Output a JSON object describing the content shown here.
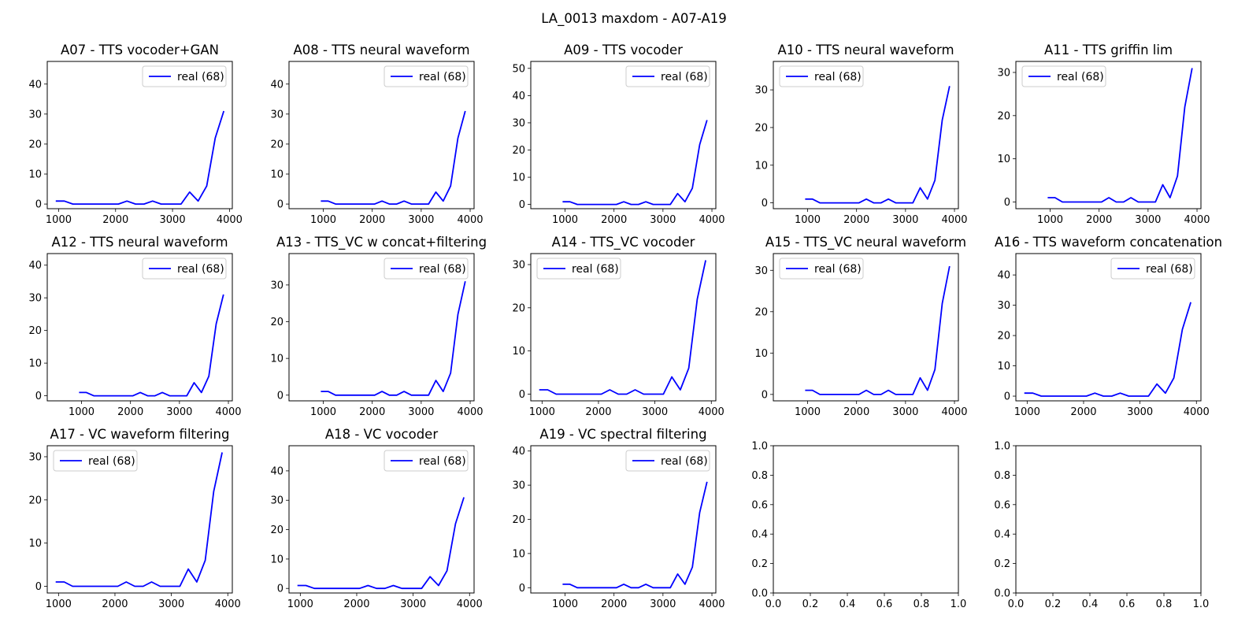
{
  "figure_title": "LA_0013 maxdom - A07-A19",
  "colors": {
    "line": "#0000ff",
    "axes": "#000000",
    "legend_border": "#cccccc"
  },
  "chart_data": [
    {
      "type": "line",
      "title": "A07 - TTS vocoder+GAN",
      "legend_loc": "upper right",
      "series": [
        {
          "name": "real (68)",
          "x": [
            950,
            1100,
            1250,
            1400,
            1550,
            1700,
            1850,
            2050,
            2200,
            2350,
            2500,
            2650,
            2800,
            2950,
            3150,
            3300,
            3450,
            3600,
            3750,
            3900
          ],
          "y": [
            1,
            1,
            0,
            0,
            0,
            0,
            0,
            0,
            1,
            0,
            0,
            1,
            0,
            0,
            0,
            4,
            1,
            6,
            22,
            31
          ]
        }
      ],
      "xlim": [
        800,
        4050
      ],
      "ylim": [
        -1.55,
        47.55
      ],
      "xticks": [
        "1000",
        "2000",
        "3000",
        "4000"
      ],
      "yticks": [
        "0",
        "10",
        "20",
        "30",
        "40"
      ]
    },
    {
      "type": "line",
      "title": "A08 - TTS neural waveform",
      "legend_loc": "upper right",
      "series": [
        {
          "name": "real (68)",
          "x": [
            950,
            1100,
            1250,
            1400,
            1550,
            1700,
            1850,
            2050,
            2200,
            2350,
            2500,
            2650,
            2800,
            2950,
            3150,
            3300,
            3450,
            3600,
            3750,
            3900
          ],
          "y": [
            1,
            1,
            0,
            0,
            0,
            0,
            0,
            0,
            1,
            0,
            0,
            1,
            0,
            0,
            0,
            4,
            1,
            6,
            22,
            31
          ]
        }
      ],
      "xlim": [
        300,
        4080
      ],
      "ylim": [
        -1.55,
        47.55
      ],
      "xticks": [
        "1000",
        "2000",
        "3000",
        "4000"
      ],
      "yticks": [
        "0",
        "10",
        "20",
        "30",
        "40"
      ]
    },
    {
      "type": "line",
      "title": "A09 - TTS vocoder",
      "legend_loc": "upper right",
      "series": [
        {
          "name": "real (68)",
          "x": [
            950,
            1100,
            1250,
            1400,
            1550,
            1700,
            1850,
            2050,
            2200,
            2350,
            2500,
            2650,
            2800,
            2950,
            3150,
            3300,
            3450,
            3600,
            3750,
            3900
          ],
          "y": [
            1,
            1,
            0,
            0,
            0,
            0,
            0,
            0,
            1,
            0,
            0,
            1,
            0,
            0,
            0,
            4,
            1,
            6,
            22,
            31
          ]
        }
      ],
      "xlim": [
        300,
        4080
      ],
      "ylim": [
        -1.55,
        52.55
      ],
      "xticks": [
        "1000",
        "2000",
        "3000",
        "4000"
      ],
      "yticks": [
        "0",
        "10",
        "20",
        "30",
        "40",
        "50"
      ]
    },
    {
      "type": "line",
      "title": "A10 - TTS neural waveform",
      "legend_loc": "upper left",
      "series": [
        {
          "name": "real (68)",
          "x": [
            950,
            1100,
            1250,
            1400,
            1550,
            1700,
            1850,
            2050,
            2200,
            2350,
            2500,
            2650,
            2800,
            2950,
            3150,
            3300,
            3450,
            3600,
            3750,
            3900
          ],
          "y": [
            1,
            1,
            0,
            0,
            0,
            0,
            0,
            0,
            1,
            0,
            0,
            1,
            0,
            0,
            0,
            4,
            1,
            6,
            22,
            31
          ]
        }
      ],
      "xlim": [
        300,
        4080
      ],
      "ylim": [
        -1.55,
        37.55
      ],
      "xticks": [
        "1000",
        "2000",
        "3000",
        "4000"
      ],
      "yticks": [
        "0",
        "10",
        "20",
        "30"
      ]
    },
    {
      "type": "line",
      "title": "A11 - TTS griffin lim",
      "legend_loc": "upper left",
      "series": [
        {
          "name": "real (68)",
          "x": [
            950,
            1100,
            1250,
            1400,
            1550,
            1700,
            1850,
            2050,
            2200,
            2350,
            2500,
            2650,
            2800,
            2950,
            3150,
            3300,
            3450,
            3600,
            3750,
            3900
          ],
          "y": [
            1,
            1,
            0,
            0,
            0,
            0,
            0,
            0,
            1,
            0,
            0,
            1,
            0,
            0,
            0,
            4,
            1,
            6,
            22,
            31
          ]
        }
      ],
      "xlim": [
        300,
        4080
      ],
      "ylim": [
        -1.55,
        32.55
      ],
      "xticks": [
        "1000",
        "2000",
        "3000",
        "4000"
      ],
      "yticks": [
        "0",
        "10",
        "20",
        "30"
      ]
    },
    {
      "type": "line",
      "title": "A12 - TTS neural waveform",
      "legend_loc": "upper right",
      "series": [
        {
          "name": "real (68)",
          "x": [
            950,
            1100,
            1250,
            1400,
            1550,
            1700,
            1850,
            2050,
            2200,
            2350,
            2500,
            2650,
            2800,
            2950,
            3150,
            3300,
            3450,
            3600,
            3750,
            3900
          ],
          "y": [
            1,
            1,
            0,
            0,
            0,
            0,
            0,
            0,
            1,
            0,
            0,
            1,
            0,
            0,
            0,
            4,
            1,
            6,
            22,
            31
          ]
        }
      ],
      "xlim": [
        300,
        4080
      ],
      "ylim": [
        -1.55,
        43.55
      ],
      "xticks": [
        "1000",
        "2000",
        "3000",
        "4000"
      ],
      "yticks": [
        "0",
        "10",
        "20",
        "30",
        "40"
      ]
    },
    {
      "type": "line",
      "title": "A13 - TTS_VC w concat+filtering",
      "legend_loc": "upper right",
      "series": [
        {
          "name": "real (68)",
          "x": [
            950,
            1100,
            1250,
            1400,
            1550,
            1700,
            1850,
            2050,
            2200,
            2350,
            2500,
            2650,
            2800,
            2950,
            3150,
            3300,
            3450,
            3600,
            3750,
            3900
          ],
          "y": [
            1,
            1,
            0,
            0,
            0,
            0,
            0,
            0,
            1,
            0,
            0,
            1,
            0,
            0,
            0,
            4,
            1,
            6,
            22,
            31
          ]
        }
      ],
      "xlim": [
        300,
        4080
      ],
      "ylim": [
        -1.55,
        38.55
      ],
      "xticks": [
        "1000",
        "2000",
        "3000",
        "4000"
      ],
      "yticks": [
        "0",
        "10",
        "20",
        "30"
      ]
    },
    {
      "type": "line",
      "title": "A14 - TTS_VC vocoder",
      "legend_loc": "upper left",
      "series": [
        {
          "name": "real (68)",
          "x": [
            950,
            1100,
            1250,
            1400,
            1550,
            1700,
            1850,
            2050,
            2200,
            2350,
            2500,
            2650,
            2800,
            2950,
            3150,
            3300,
            3450,
            3600,
            3750,
            3900
          ],
          "y": [
            1,
            1,
            0,
            0,
            0,
            0,
            0,
            0,
            1,
            0,
            0,
            1,
            0,
            0,
            0,
            4,
            1,
            6,
            22,
            31
          ]
        }
      ],
      "xlim": [
        800,
        4080
      ],
      "ylim": [
        -1.55,
        32.55
      ],
      "xticks": [
        "1000",
        "2000",
        "3000",
        "4000"
      ],
      "yticks": [
        "0",
        "10",
        "20",
        "30"
      ]
    },
    {
      "type": "line",
      "title": "A15 - TTS_VC neural waveform",
      "legend_loc": "upper left",
      "series": [
        {
          "name": "real (68)",
          "x": [
            950,
            1100,
            1250,
            1400,
            1550,
            1700,
            1850,
            2050,
            2200,
            2350,
            2500,
            2650,
            2800,
            2950,
            3150,
            3300,
            3450,
            3600,
            3750,
            3900
          ],
          "y": [
            1,
            1,
            0,
            0,
            0,
            0,
            0,
            0,
            1,
            0,
            0,
            1,
            0,
            0,
            0,
            4,
            1,
            6,
            22,
            31
          ]
        }
      ],
      "xlim": [
        300,
        4080
      ],
      "ylim": [
        -1.55,
        34.05
      ],
      "xticks": [
        "1000",
        "2000",
        "3000",
        "4000"
      ],
      "yticks": [
        "0",
        "10",
        "20",
        "30"
      ]
    },
    {
      "type": "line",
      "title": "A16 - TTS waveform concatenation",
      "legend_loc": "upper right",
      "series": [
        {
          "name": "real (68)",
          "x": [
            950,
            1100,
            1250,
            1400,
            1550,
            1700,
            1850,
            2050,
            2200,
            2350,
            2500,
            2650,
            2800,
            2950,
            3150,
            3300,
            3450,
            3600,
            3750,
            3900
          ],
          "y": [
            1,
            1,
            0,
            0,
            0,
            0,
            0,
            0,
            1,
            0,
            0,
            1,
            0,
            0,
            0,
            4,
            1,
            6,
            22,
            31
          ]
        }
      ],
      "xlim": [
        800,
        4080
      ],
      "ylim": [
        -1.55,
        47.05
      ],
      "xticks": [
        "1000",
        "2000",
        "3000",
        "4000"
      ],
      "yticks": [
        "0",
        "10",
        "20",
        "30",
        "40"
      ]
    },
    {
      "type": "line",
      "title": "A17 - VC waveform filtering",
      "legend_loc": "upper left",
      "series": [
        {
          "name": "real (68)",
          "x": [
            950,
            1100,
            1250,
            1400,
            1550,
            1700,
            1850,
            2050,
            2200,
            2350,
            2500,
            2650,
            2800,
            2950,
            3150,
            3300,
            3450,
            3600,
            3750,
            3900
          ],
          "y": [
            1,
            1,
            0,
            0,
            0,
            0,
            0,
            0,
            1,
            0,
            0,
            1,
            0,
            0,
            0,
            4,
            1,
            6,
            22,
            31
          ]
        }
      ],
      "xlim": [
        800,
        4080
      ],
      "ylim": [
        -1.55,
        32.55
      ],
      "xticks": [
        "1000",
        "2000",
        "3000",
        "4000"
      ],
      "yticks": [
        "0",
        "10",
        "20",
        "30"
      ]
    },
    {
      "type": "line",
      "title": "A18 - VC vocoder",
      "legend_loc": "upper right",
      "series": [
        {
          "name": "real (68)",
          "x": [
            950,
            1100,
            1250,
            1400,
            1550,
            1700,
            1850,
            2050,
            2200,
            2350,
            2500,
            2650,
            2800,
            2950,
            3150,
            3300,
            3450,
            3600,
            3750,
            3900
          ],
          "y": [
            1,
            1,
            0,
            0,
            0,
            0,
            0,
            0,
            1,
            0,
            0,
            1,
            0,
            0,
            0,
            4,
            1,
            6,
            22,
            31
          ]
        }
      ],
      "xlim": [
        800,
        4080
      ],
      "ylim": [
        -1.55,
        48.55
      ],
      "xticks": [
        "1000",
        "2000",
        "3000",
        "4000"
      ],
      "yticks": [
        "0",
        "10",
        "20",
        "30",
        "40"
      ]
    },
    {
      "type": "line",
      "title": "A19 - VC spectral filtering",
      "legend_loc": "upper right",
      "series": [
        {
          "name": "real (68)",
          "x": [
            950,
            1100,
            1250,
            1400,
            1550,
            1700,
            1850,
            2050,
            2200,
            2350,
            2500,
            2650,
            2800,
            2950,
            3150,
            3300,
            3450,
            3600,
            3750,
            3900
          ],
          "y": [
            1,
            1,
            0,
            0,
            0,
            0,
            0,
            0,
            1,
            0,
            0,
            1,
            0,
            0,
            0,
            4,
            1,
            6,
            22,
            31
          ]
        }
      ],
      "xlim": [
        300,
        4080
      ],
      "ylim": [
        -1.55,
        41.55
      ],
      "xticks": [
        "1000",
        "2000",
        "3000",
        "4000"
      ],
      "yticks": [
        "0",
        "10",
        "20",
        "30",
        "40"
      ]
    },
    {
      "type": "line",
      "title": "",
      "series": [],
      "xlim": [
        0,
        1
      ],
      "ylim": [
        0,
        1
      ],
      "xticks": [
        "0.0",
        "0.2",
        "0.4",
        "0.6",
        "0.8",
        "1.0"
      ],
      "yticks": [
        "0.0",
        "0.2",
        "0.4",
        "0.6",
        "0.8",
        "1.0"
      ]
    },
    {
      "type": "line",
      "title": "",
      "series": [],
      "xlim": [
        0,
        1
      ],
      "ylim": [
        0,
        1
      ],
      "xticks": [
        "0.0",
        "0.2",
        "0.4",
        "0.6",
        "0.8",
        "1.0"
      ],
      "yticks": [
        "0.0",
        "0.2",
        "0.4",
        "0.6",
        "0.8",
        "1.0"
      ]
    }
  ]
}
